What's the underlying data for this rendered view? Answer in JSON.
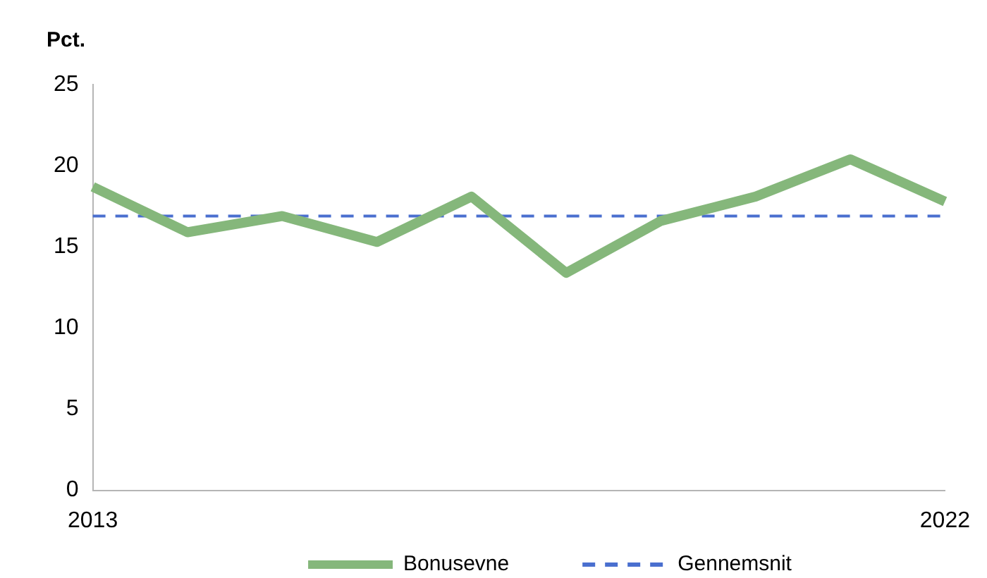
{
  "chart_data": {
    "type": "line",
    "ylabel": "Pct.",
    "categories": [
      "2013",
      null,
      null,
      null,
      null,
      null,
      null,
      null,
      null,
      "2022"
    ],
    "series": [
      {
        "name": "Bonusevne",
        "color": "#85b77b",
        "values": [
          18.7,
          15.9,
          16.9,
          15.3,
          18.1,
          13.4,
          16.6,
          18.1,
          20.4,
          17.8
        ]
      }
    ],
    "ref_lines": [
      {
        "axis": "y",
        "value": 16.9,
        "label": "Gennemsnit",
        "color": "#4a6fcf",
        "line_style": "dashed"
      }
    ],
    "ylim": [
      0,
      25
    ],
    "yticks": [
      0,
      5,
      10,
      15,
      20,
      25
    ],
    "grid": false,
    "legend": "bottom",
    "marker": "none"
  }
}
